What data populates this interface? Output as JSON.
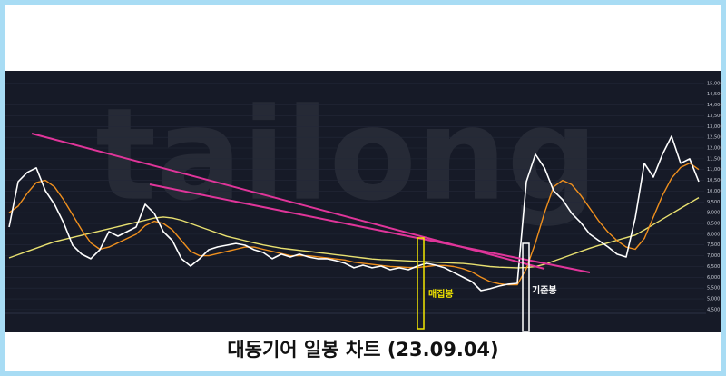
{
  "chart_data": {
    "type": "line",
    "title": "대동기어 일봉 차트 (23.09.04)",
    "watermark": "tailong",
    "annotations": [
      "매집봉",
      "기준봉"
    ],
    "series": [
      {
        "color": "#ffffff",
        "values": [
          8330,
          10440,
          10870,
          11080,
          10020,
          9390,
          8540,
          7490,
          7070,
          6860,
          7280,
          8120,
          7910,
          8120,
          8330,
          9390,
          8970,
          8120,
          7700,
          6860,
          6520,
          6860,
          7280,
          7410,
          7490,
          7570,
          7490,
          7280,
          7150,
          6860,
          7070,
          6940,
          7070,
          6940,
          6860,
          6860,
          6770,
          6650,
          6440,
          6560,
          6440,
          6520,
          6350,
          6440,
          6350,
          6520,
          6650,
          6560,
          6440,
          6220,
          6010,
          5800,
          5380,
          5470,
          5590,
          5680,
          5720,
          10440,
          11710,
          11080,
          10020,
          9600,
          8970,
          8540,
          8000,
          7700,
          7410,
          7070,
          6940,
          8760,
          11290,
          10650,
          11710,
          12550,
          11290,
          11500,
          10440
        ]
      },
      {
        "color": "#f0901e",
        "values": [
          9000,
          9300,
          9900,
          10400,
          10500,
          10200,
          9600,
          8900,
          8200,
          7600,
          7300,
          7400,
          7600,
          7800,
          8000,
          8400,
          8600,
          8500,
          8200,
          7700,
          7200,
          7000,
          7000,
          7100,
          7200,
          7300,
          7400,
          7400,
          7300,
          7200,
          7100,
          7000,
          7000,
          7000,
          6950,
          6900,
          6850,
          6800,
          6700,
          6650,
          6600,
          6550,
          6500,
          6480,
          6450,
          6450,
          6500,
          6550,
          6550,
          6500,
          6400,
          6250,
          6000,
          5800,
          5700,
          5650,
          5650,
          6400,
          7600,
          9000,
          10200,
          10500,
          10300,
          9800,
          9200,
          8600,
          8100,
          7700,
          7400,
          7300,
          7800,
          8800,
          9800,
          10600,
          11100,
          11300,
          11000
        ]
      },
      {
        "color": "#e8e070",
        "values": [
          6900,
          7050,
          7200,
          7350,
          7500,
          7650,
          7750,
          7850,
          7950,
          8050,
          8150,
          8250,
          8350,
          8450,
          8550,
          8650,
          8750,
          8800,
          8750,
          8650,
          8500,
          8350,
          8200,
          8050,
          7900,
          7800,
          7700,
          7600,
          7500,
          7420,
          7350,
          7300,
          7250,
          7200,
          7150,
          7100,
          7050,
          7000,
          6950,
          6900,
          6850,
          6820,
          6800,
          6780,
          6760,
          6740,
          6720,
          6700,
          6680,
          6660,
          6640,
          6600,
          6550,
          6500,
          6470,
          6450,
          6440,
          6450,
          6500,
          6600,
          6750,
          6900,
          7050,
          7200,
          7350,
          7480,
          7600,
          7720,
          7840,
          7960,
          8200,
          8450,
          8700,
          8950,
          9200,
          9450,
          9700
        ]
      }
    ],
    "ylim": [
      4200,
      15500
    ],
    "yticks": [
      {
        "value": 4500,
        "label": "4,500"
      },
      {
        "value": 5000,
        "label": "5,000"
      },
      {
        "value": 5500,
        "label": "5,500"
      },
      {
        "value": 6000,
        "label": "6,000"
      },
      {
        "value": 6500,
        "label": "6,500"
      },
      {
        "value": 7000,
        "label": "7,000"
      },
      {
        "value": 7500,
        "label": "7,500"
      },
      {
        "value": 8000,
        "label": "8,000"
      },
      {
        "value": 8500,
        "label": "8,500"
      },
      {
        "value": 9000,
        "label": "9,000"
      },
      {
        "value": 9500,
        "label": "9,500"
      },
      {
        "value": 10000,
        "label": "10,000"
      },
      {
        "value": 10500,
        "label": "10,500"
      },
      {
        "value": 11000,
        "label": "11,000"
      },
      {
        "value": 11500,
        "label": "11,500"
      },
      {
        "value": 12000,
        "label": "12,000"
      },
      {
        "value": 12500,
        "label": "12,500"
      },
      {
        "value": 13000,
        "label": "13,000"
      },
      {
        "value": 13500,
        "label": "13,500"
      },
      {
        "value": 14000,
        "label": "14,000"
      },
      {
        "value": 14500,
        "label": "14,500"
      },
      {
        "value": 15000,
        "label": "15,000"
      }
    ],
    "grid": true
  }
}
